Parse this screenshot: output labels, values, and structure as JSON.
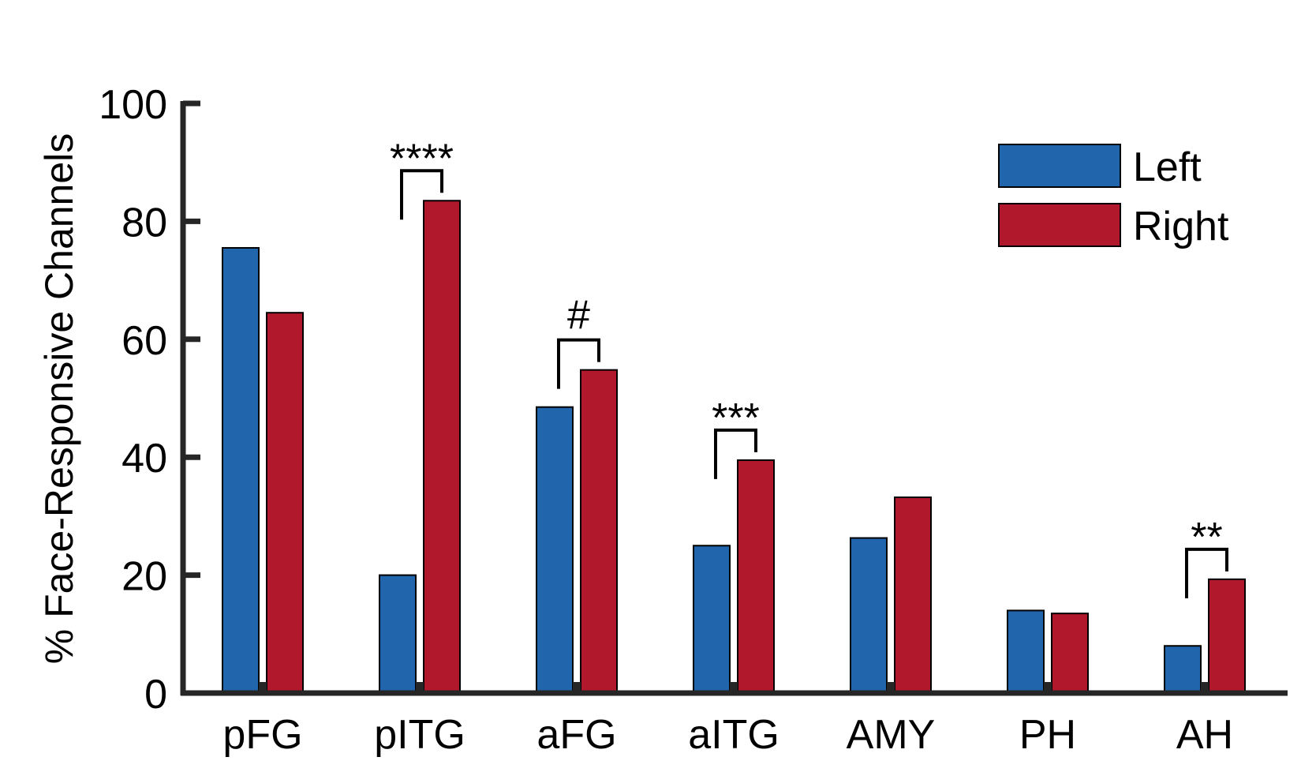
{
  "chart_data": {
    "type": "bar",
    "title": "",
    "xlabel": "",
    "ylabel": "% Face-Responsive Channels",
    "ylim": [
      0,
      100
    ],
    "yticks": [
      0,
      20,
      40,
      60,
      80,
      100
    ],
    "categories": [
      "pFG",
      "pITG",
      "aFG",
      "aITG",
      "AMY",
      "PH",
      "AH"
    ],
    "series": [
      {
        "name": "Left",
        "color": "#2166ac",
        "values": [
          75.5,
          20,
          48.5,
          25,
          26.3,
          14,
          8
        ]
      },
      {
        "name": "Right",
        "color": "#b2182b",
        "values": [
          64.5,
          83.5,
          54.8,
          39.5,
          33.2,
          13.5,
          19.3
        ]
      }
    ],
    "significance": [
      {
        "category": "pITG",
        "label": "****"
      },
      {
        "category": "aFG",
        "label": "#"
      },
      {
        "category": "aITG",
        "label": "***"
      },
      {
        "category": "AH",
        "label": "**"
      }
    ],
    "legend": {
      "position": "top-right"
    },
    "grid": false
  }
}
